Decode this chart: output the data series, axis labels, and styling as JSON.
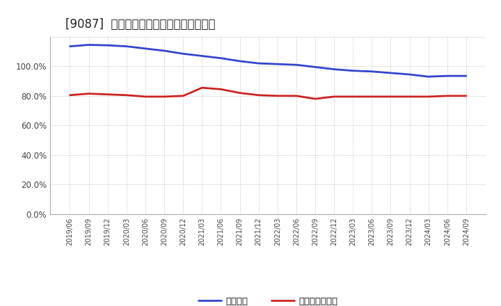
{
  "title": "[9087]  固定比率、固定長期適合率の推移",
  "title_fontsize": 12,
  "background_color": "#ffffff",
  "plot_bg_color": "#ffffff",
  "grid_color": "#aaaaaa",
  "x_labels": [
    "2019/06",
    "2019/09",
    "2019/12",
    "2020/03",
    "2020/06",
    "2020/09",
    "2020/12",
    "2021/03",
    "2021/06",
    "2021/09",
    "2021/12",
    "2022/03",
    "2022/06",
    "2022/09",
    "2022/12",
    "2023/03",
    "2023/06",
    "2023/09",
    "2023/12",
    "2024/03",
    "2024/06",
    "2024/09"
  ],
  "fixed_ratio": [
    113.5,
    114.5,
    114.2,
    113.5,
    112.0,
    110.5,
    108.5,
    107.0,
    105.5,
    103.5,
    102.0,
    101.5,
    101.0,
    99.5,
    98.0,
    97.0,
    96.5,
    95.5,
    94.5,
    93.0,
    93.5,
    93.5
  ],
  "fixed_long_ratio": [
    80.5,
    81.5,
    81.0,
    80.5,
    79.5,
    79.5,
    80.0,
    85.5,
    84.5,
    82.0,
    80.5,
    80.0,
    80.0,
    78.0,
    79.5,
    79.5,
    79.5,
    79.5,
    79.5,
    79.5,
    80.0,
    80.0
  ],
  "fixed_ratio_color": "#3344cc",
  "fixed_long_ratio_color": "#cc2222",
  "line_width": 2.0,
  "ylim": [
    0,
    120
  ],
  "yticks": [
    0,
    20,
    40,
    60,
    80,
    100,
    120
  ],
  "ytick_labels": [
    "0.0%",
    "20.0%",
    "40.0%",
    "60.0%",
    "80.0%",
    "100.0%",
    ""
  ],
  "legend_fixed": "固定比率",
  "legend_fixed_long": "固定長期適合率"
}
